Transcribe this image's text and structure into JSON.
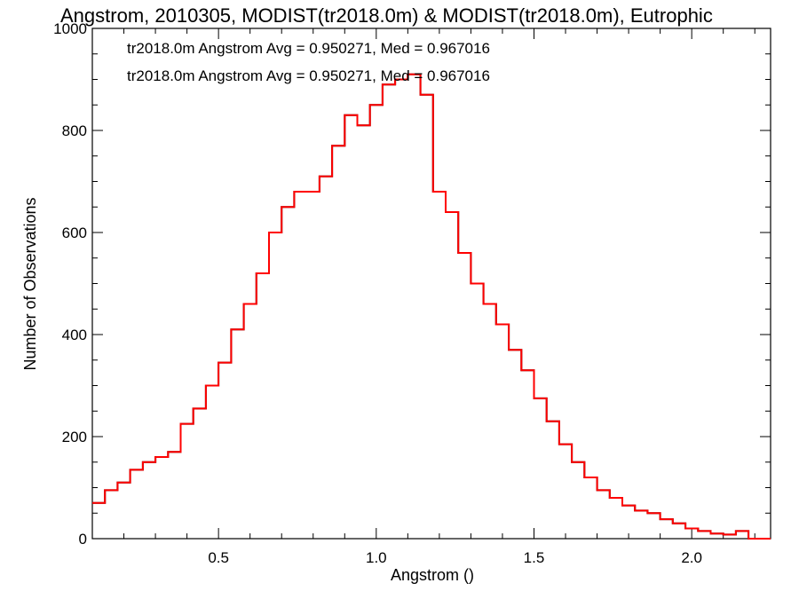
{
  "chart_data": {
    "type": "histogram",
    "title": "Angstrom, 2010305, MODIST(tr2018.0m) & MODIST(tr2018.0m), Eutrophic",
    "xlabel": "Angstrom ()",
    "ylabel": "Number of Observations",
    "xlim": [
      0.1,
      2.25
    ],
    "ylim": [
      0,
      1000
    ],
    "x_ticks": [
      0.5,
      1.0,
      1.5,
      2.0
    ],
    "x_tick_labels": [
      "0.5",
      "1.0",
      "1.5",
      "2.0"
    ],
    "y_ticks": [
      0,
      200,
      400,
      600,
      800,
      1000
    ],
    "y_tick_labels": [
      "0",
      "200",
      "400",
      "600",
      "800",
      "1000"
    ],
    "grid": false,
    "legend_placement": "top-left",
    "annotations": [
      {
        "text": "tr2018.0m Angstrom Avg = 0.950271, Med = 0.967016",
        "color": "#000000"
      },
      {
        "text": "tr2018.0m Angstrom Avg = 0.950271, Med = 0.967016",
        "color": "#ff0000"
      }
    ],
    "series": [
      {
        "color": "#000000",
        "x": [
          0.1,
          0.14,
          0.18,
          0.22,
          0.26,
          0.3,
          0.34,
          0.38,
          0.42,
          0.46,
          0.5,
          0.54,
          0.58,
          0.62,
          0.66,
          0.7,
          0.74,
          0.78,
          0.82,
          0.86,
          0.9,
          0.94,
          0.98,
          1.02,
          1.06,
          1.1,
          1.14,
          1.18,
          1.22,
          1.26,
          1.3,
          1.34,
          1.38,
          1.42,
          1.46,
          1.5,
          1.54,
          1.58,
          1.62,
          1.66,
          1.7,
          1.74,
          1.78,
          1.82,
          1.86,
          1.9,
          1.94,
          1.98,
          2.02,
          2.06,
          2.1,
          2.14,
          2.18,
          2.22
        ],
        "values": [
          70,
          95,
          110,
          135,
          150,
          160,
          170,
          225,
          255,
          300,
          345,
          410,
          460,
          520,
          600,
          650,
          680,
          680,
          710,
          770,
          830,
          810,
          850,
          890,
          900,
          910,
          870,
          680,
          640,
          560,
          500,
          460,
          420,
          370,
          330,
          275,
          230,
          185,
          150,
          120,
          95,
          80,
          65,
          55,
          50,
          38,
          30,
          20,
          15,
          10,
          8,
          15,
          0,
          0
        ]
      },
      {
        "color": "#ff0000",
        "x": [
          0.1,
          0.14,
          0.18,
          0.22,
          0.26,
          0.3,
          0.34,
          0.38,
          0.42,
          0.46,
          0.5,
          0.54,
          0.58,
          0.62,
          0.66,
          0.7,
          0.74,
          0.78,
          0.82,
          0.86,
          0.9,
          0.94,
          0.98,
          1.02,
          1.06,
          1.1,
          1.14,
          1.18,
          1.22,
          1.26,
          1.3,
          1.34,
          1.38,
          1.42,
          1.46,
          1.5,
          1.54,
          1.58,
          1.62,
          1.66,
          1.7,
          1.74,
          1.78,
          1.82,
          1.86,
          1.9,
          1.94,
          1.98,
          2.02,
          2.06,
          2.1,
          2.14,
          2.18,
          2.22
        ],
        "values": [
          70,
          95,
          110,
          135,
          150,
          160,
          170,
          225,
          255,
          300,
          345,
          410,
          460,
          520,
          600,
          650,
          680,
          680,
          710,
          770,
          830,
          810,
          850,
          890,
          900,
          910,
          870,
          680,
          640,
          560,
          500,
          460,
          420,
          370,
          330,
          275,
          230,
          185,
          150,
          120,
          95,
          80,
          65,
          55,
          50,
          38,
          30,
          20,
          15,
          10,
          8,
          15,
          0,
          0
        ]
      }
    ]
  }
}
